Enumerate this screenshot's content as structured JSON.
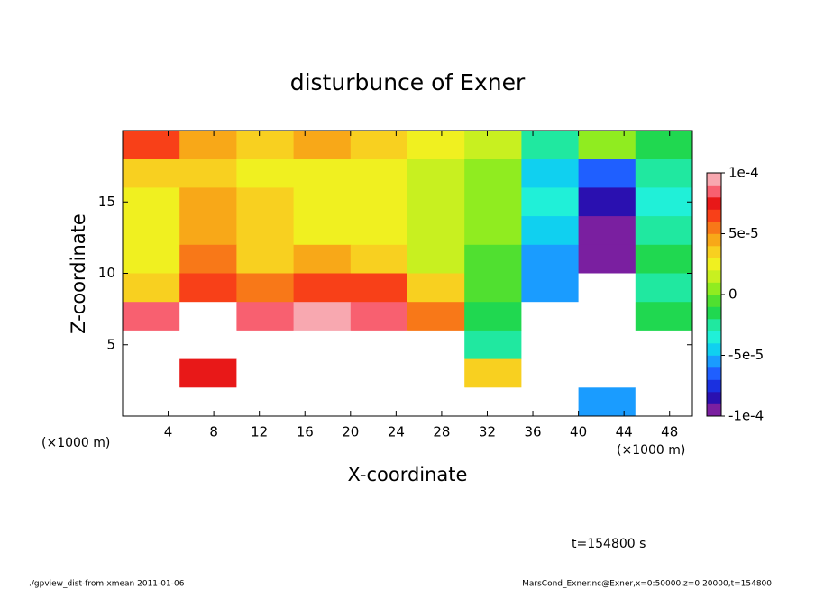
{
  "chart_data": {
    "type": "heatmap",
    "title": "disturbunce of Exner",
    "xlabel": "X-coordinate",
    "ylabel": "Z-coordinate",
    "x_unit": "(×1000 m)",
    "y_unit": "(×1000 m)",
    "annotation": "t=154800 s",
    "footer_left": "./gpview_dist-from-xmean  2011-01-06",
    "footer_right": "MarsCond_Exner.nc@Exner,x=0:50000,z=0:20000,t=154800",
    "xlim": [
      0,
      50
    ],
    "ylim": [
      0,
      20
    ],
    "xticks": [
      4,
      8,
      12,
      16,
      20,
      24,
      28,
      32,
      36,
      40,
      44,
      48
    ],
    "yticks": [
      5,
      10,
      15
    ],
    "out_of_range_color": "#ffffff",
    "field": {
      "x": [
        2.5,
        7.5,
        12.5,
        17.5,
        22.5,
        27.5,
        32.5,
        37.5,
        42.5,
        47.5
      ],
      "z": [
        19,
        17,
        15,
        13,
        11,
        9,
        7,
        5,
        3,
        1
      ],
      "values": [
        [
          6e-05,
          4e-05,
          3e-05,
          4e-05,
          3e-05,
          2e-05,
          1e-05,
          -3e-05,
          0,
          -2e-05
        ],
        [
          3e-05,
          3e-05,
          2e-05,
          2e-05,
          2e-05,
          1e-05,
          0,
          -5e-05,
          -7e-05,
          -3e-05
        ],
        [
          2e-05,
          4e-05,
          3e-05,
          2e-05,
          2e-05,
          1e-05,
          0,
          -4e-05,
          -8e-05,
          -4e-05
        ],
        [
          2e-05,
          4e-05,
          3e-05,
          2e-05,
          2e-05,
          1e-05,
          0,
          -5e-05,
          -9e-05,
          -3e-05
        ],
        [
          2e-05,
          5e-05,
          3e-05,
          4e-05,
          3e-05,
          1e-05,
          -1e-05,
          -6e-05,
          -9e-05,
          -2e-05
        ],
        [
          3e-05,
          6e-05,
          5e-05,
          6e-05,
          6e-05,
          3e-05,
          -1e-05,
          -6e-05,
          -0.00012,
          -3e-05
        ],
        [
          8e-05,
          0.00012,
          8e-05,
          9e-05,
          8e-05,
          5e-05,
          -2e-05,
          -0.00012,
          -0.00012,
          -2e-05
        ],
        [
          0.00012,
          0.00012,
          0.00012,
          0.00012,
          0.00012,
          0.00012,
          -3e-05,
          -0.00012,
          -0.00012,
          0.00012
        ],
        [
          0.00012,
          7e-05,
          0.00012,
          0.00012,
          0.00012,
          0.00012,
          3e-05,
          -0.00012,
          -0.00012,
          0.00012
        ],
        [
          0.00012,
          0.00012,
          0.00012,
          0.00012,
          0.00012,
          0.00012,
          0.00012,
          -0.00012,
          -6e-05,
          0.00012
        ]
      ]
    },
    "colorbar": {
      "lim": [
        -0.0001,
        0.0001
      ],
      "colors": [
        "#7a1fa0",
        "#2a10b0",
        "#1a30e0",
        "#1f5fff",
        "#1a9cff",
        "#10d0f0",
        "#20f0d8",
        "#20e8a0",
        "#20d850",
        "#50e030",
        "#90ec20",
        "#c8f020",
        "#f0f020",
        "#f8d020",
        "#f8a818",
        "#f87818",
        "#f84018",
        "#e81818",
        "#f86070",
        "#f8a8b0"
      ],
      "ticks": [
        {
          "value": 0.0001,
          "label": "1e-4"
        },
        {
          "value": 5e-05,
          "label": "5e-5"
        },
        0,
        {
          "value": -5e-05,
          "label": "-5e-5"
        },
        {
          "value": -0.0001,
          "label": "-1e-4"
        }
      ]
    }
  }
}
